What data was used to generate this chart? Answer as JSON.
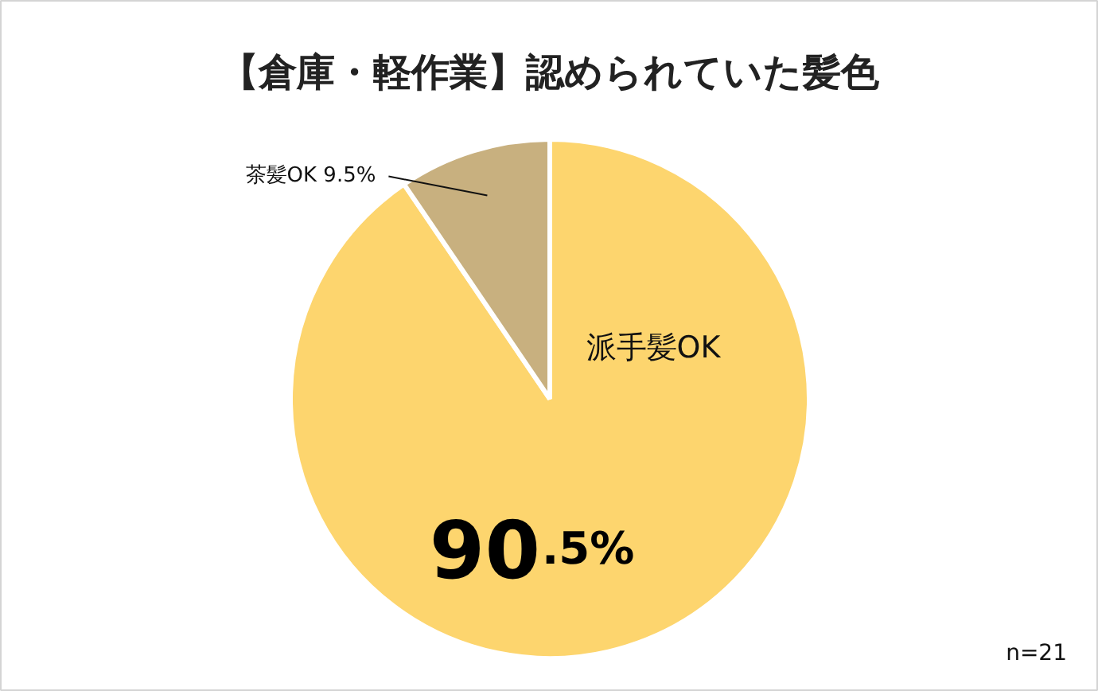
{
  "chart_data": {
    "type": "pie",
    "title": "【倉庫・軽作業】認められていた髪色",
    "categories": [
      "派手髪OK",
      "茶髪OK"
    ],
    "values": [
      90.5,
      9.5
    ],
    "colors": [
      "#fdd56e",
      "#c8b07f"
    ],
    "value_labels": [
      "90.5%",
      "9.5%"
    ],
    "annotations": [
      "n=21"
    ]
  }
}
